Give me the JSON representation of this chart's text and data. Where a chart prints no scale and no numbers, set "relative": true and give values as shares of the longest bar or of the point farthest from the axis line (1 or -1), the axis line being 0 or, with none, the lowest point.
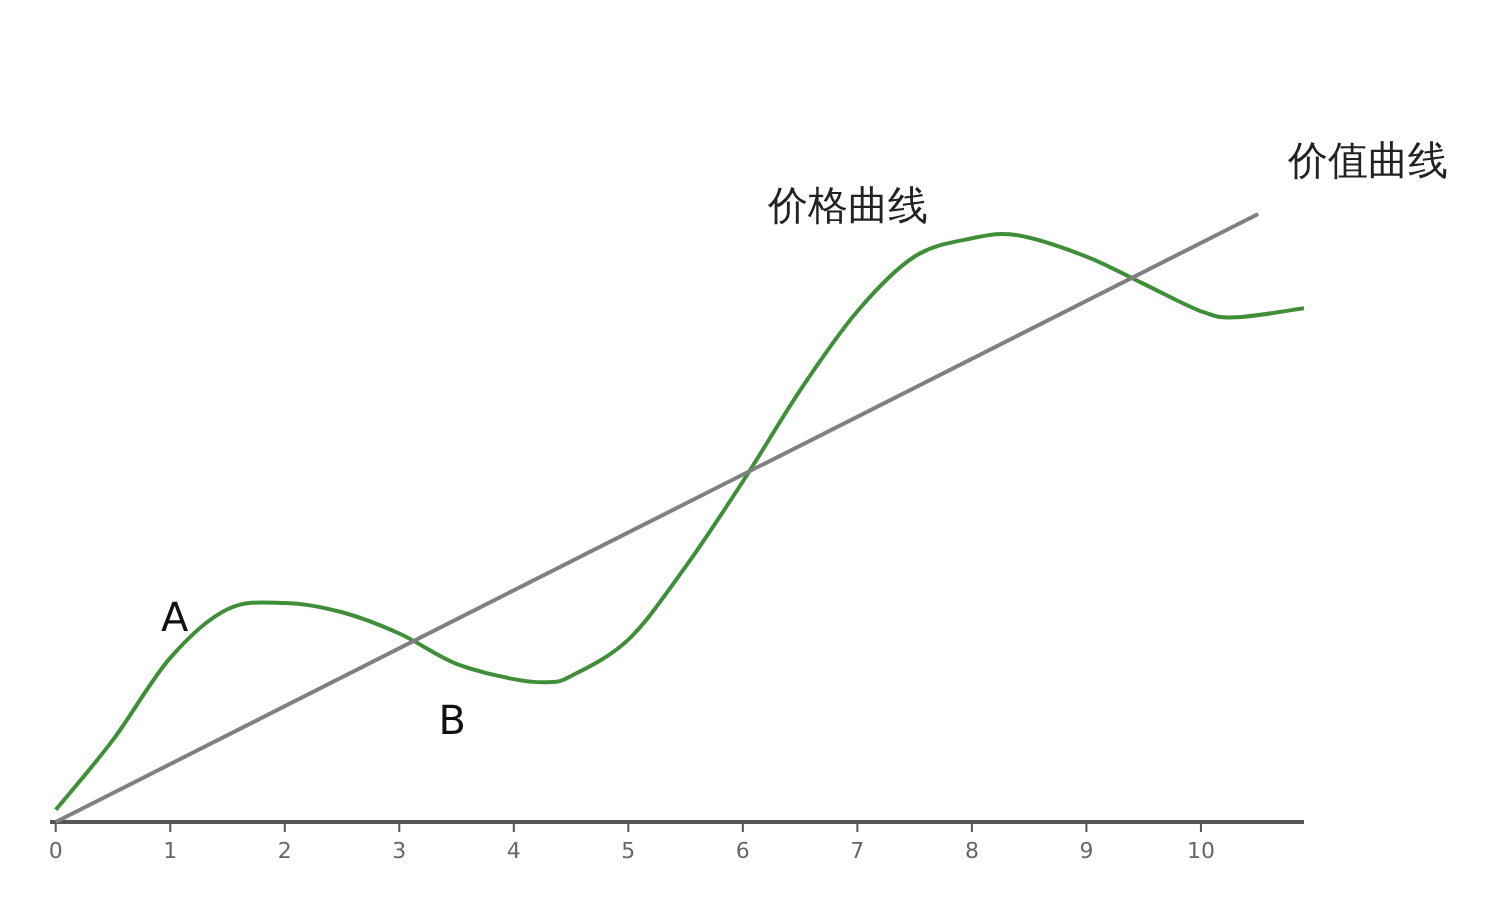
{
  "chart_data": {
    "type": "line",
    "relative": true,
    "xlim": [
      -0.05,
      10.9
    ],
    "xticks": [
      0,
      1,
      2,
      3,
      4,
      5,
      6,
      7,
      8,
      9,
      10
    ],
    "grid": false,
    "marker": "none",
    "line_style": "solid",
    "series": [
      {
        "name": "价格曲线",
        "color": "#3f8f38",
        "x": [
          0,
          0.5,
          1,
          1.5,
          2,
          2.5,
          3,
          3.5,
          4,
          4.3,
          4.5,
          5,
          5.5,
          6,
          6.5,
          7,
          7.5,
          8,
          8.4,
          9,
          9.5,
          10,
          10.3,
          10.9
        ],
        "values": [
          0.02,
          0.135,
          0.27,
          0.35,
          0.36,
          0.345,
          0.31,
          0.26,
          0.235,
          0.23,
          0.24,
          0.3,
          0.42,
          0.56,
          0.71,
          0.84,
          0.93,
          0.96,
          0.965,
          0.93,
          0.885,
          0.84,
          0.83,
          0.845
        ]
      },
      {
        "name": "价值曲线",
        "color": "#808080",
        "x": [
          0,
          10.5
        ],
        "values": [
          0,
          1
        ]
      }
    ],
    "annotations": [
      "A",
      "B"
    ]
  }
}
